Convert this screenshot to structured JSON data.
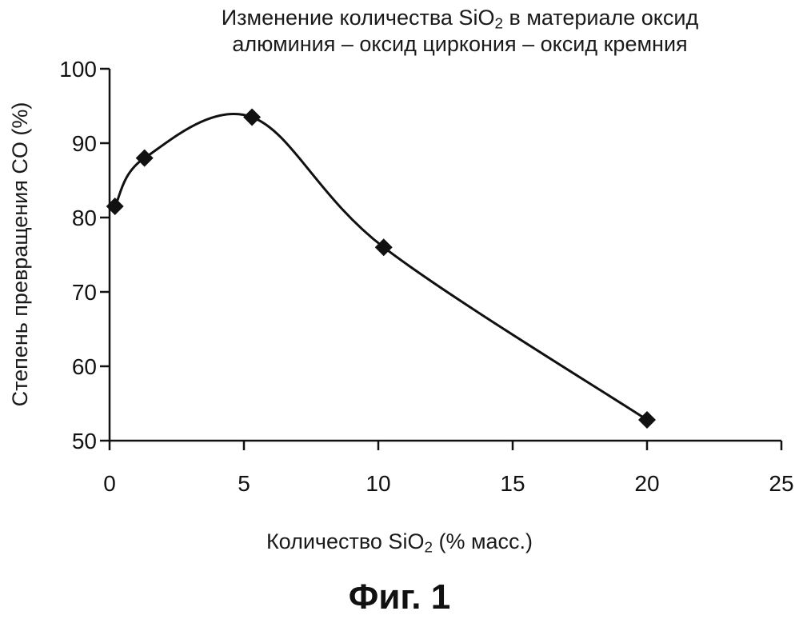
{
  "figure": {
    "caption": "Фиг. 1"
  },
  "chart_data": {
    "type": "line",
    "title_lines": [
      {
        "pre": "Изменение количества SiO",
        "sub": "2",
        "post": " в материале оксид"
      },
      {
        "pre": "алюминия – оксид циркония – оксид кремния",
        "sub": "",
        "post": ""
      }
    ],
    "xlabel": {
      "pre": "Количество SiO",
      "sub": "2",
      "post": " (% масс.)"
    },
    "ylabel": "Степень превращения CO (%)",
    "xlim": [
      0,
      25
    ],
    "ylim": [
      50,
      100
    ],
    "x_ticks": [
      0,
      5,
      10,
      15,
      20,
      25
    ],
    "y_ticks": [
      50,
      60,
      70,
      80,
      90,
      100
    ],
    "grid": false,
    "series": [
      {
        "marker": "diamond",
        "color": "#111111",
        "points": [
          {
            "x": 0.2,
            "y": 81.5
          },
          {
            "x": 1.3,
            "y": 88
          },
          {
            "x": 5.3,
            "y": 93.5
          },
          {
            "x": 10.2,
            "y": 76
          },
          {
            "x": 20,
            "y": 52.8
          }
        ]
      }
    ]
  }
}
